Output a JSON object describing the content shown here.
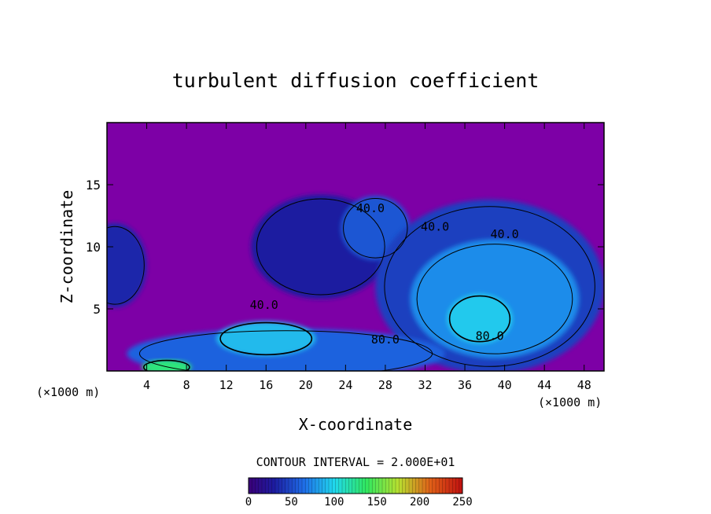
{
  "chart_data": {
    "type": "heatmap",
    "title": "turbulent diffusion coefficient",
    "xlabel": "X-coordinate",
    "ylabel": "Z-coordinate",
    "x_unit": "(×1000 m)",
    "x_unit_right": "(×1000 m)",
    "xlim": [
      0,
      50
    ],
    "ylim": [
      0,
      20
    ],
    "x_ticks": [
      "4",
      "8",
      "12",
      "16",
      "20",
      "24",
      "28",
      "32",
      "36",
      "40",
      "44",
      "48"
    ],
    "x_tick_values": [
      4,
      8,
      12,
      16,
      20,
      24,
      28,
      32,
      36,
      40,
      44,
      48
    ],
    "y_ticks": [
      "5",
      "10",
      "15"
    ],
    "y_tick_values": [
      5,
      10,
      15
    ],
    "contour_interval_text": "CONTOUR INTERVAL = 2.000E+01",
    "contour_interval": 20,
    "contour_labels": [
      {
        "text": "40.0",
        "x": 26.5,
        "z": 12.8
      },
      {
        "text": "40.0",
        "x": 33.0,
        "z": 11.3
      },
      {
        "text": "40.0",
        "x": 40.0,
        "z": 10.7
      },
      {
        "text": "40.0",
        "x": 15.8,
        "z": 5.0
      },
      {
        "text": "80.0",
        "x": 28.0,
        "z": 2.2
      },
      {
        "text": "80.0",
        "x": 38.5,
        "z": 2.5
      }
    ],
    "colorbar": {
      "min": 0,
      "max": 250,
      "tick_labels": [
        "0",
        "50",
        "100",
        "150",
        "200",
        "250"
      ],
      "tick_values": [
        0,
        50,
        100,
        150,
        200,
        250
      ]
    },
    "colors": {
      "background_field": "#7d00a6",
      "low": "#1424a8",
      "mid": "#1f6ee8",
      "high": "#22dcee",
      "peak": "#32e86a"
    },
    "field_regions": [
      {
        "name": "left-plume",
        "cx": 0.8,
        "cz": 8.5,
        "rx": 3.2,
        "rz": 3.4,
        "value": 35
      },
      {
        "name": "central-cloud",
        "cx": 21.5,
        "cz": 10.0,
        "rx": 7.0,
        "rz": 4.2,
        "value": 30
      },
      {
        "name": "central-tower",
        "cx": 27.0,
        "cz": 11.5,
        "rx": 3.5,
        "rz": 2.6,
        "value": 55
      },
      {
        "name": "right-cloud",
        "cx": 38.5,
        "cz": 6.8,
        "rx": 11.5,
        "rz": 7.0,
        "value": 45
      },
      {
        "name": "right-core",
        "cx": 39.0,
        "cz": 5.8,
        "rx": 8.5,
        "rz": 4.8,
        "value": 75
      },
      {
        "name": "right-inner",
        "cx": 37.5,
        "cz": 4.2,
        "rx": 3.3,
        "rz": 2.0,
        "value": 95
      },
      {
        "name": "low-band",
        "cx": 18.0,
        "cz": 1.4,
        "rx": 16.0,
        "rz": 2.0,
        "value": 60
      },
      {
        "name": "low-core",
        "cx": 16.0,
        "cz": 2.6,
        "rx": 5.0,
        "rz": 1.4,
        "value": 90
      },
      {
        "name": "surface-peak",
        "cx": 6.0,
        "cz": 0.3,
        "rx": 2.5,
        "rz": 0.6,
        "value": 130
      }
    ]
  }
}
